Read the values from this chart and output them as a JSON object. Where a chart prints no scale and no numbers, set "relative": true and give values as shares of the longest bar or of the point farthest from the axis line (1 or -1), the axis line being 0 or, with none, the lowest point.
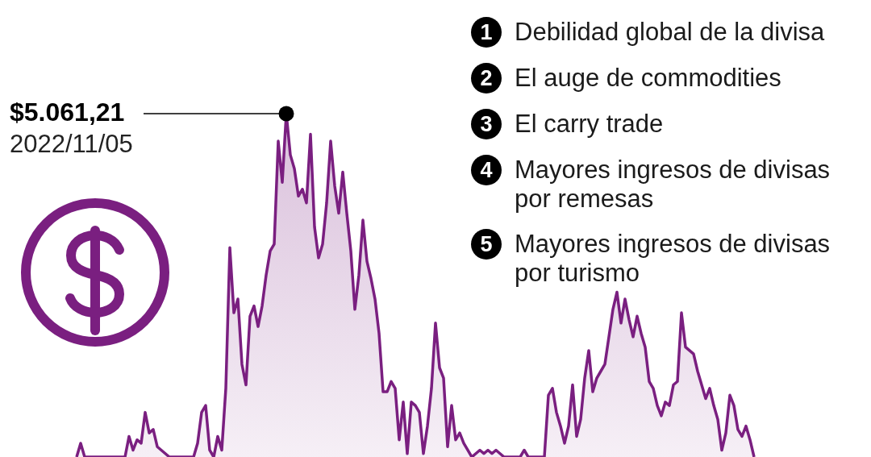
{
  "chart_data": {
    "type": "area",
    "relative": true,
    "color": "#7a1f80",
    "categories": [
      null,
      null,
      null,
      null,
      null,
      null,
      null,
      null,
      null,
      null,
      null,
      null,
      null,
      null,
      null,
      null,
      null,
      null,
      null,
      null,
      null,
      null,
      null,
      null,
      null,
      null,
      null,
      null,
      null,
      null,
      null,
      null,
      null,
      null,
      null,
      null,
      null,
      null,
      null,
      null,
      null,
      null,
      null,
      null,
      null,
      null,
      null,
      null,
      null,
      null,
      null,
      null,
      null,
      null,
      null,
      null,
      null,
      null,
      null,
      null,
      null,
      null,
      null,
      null,
      null,
      null,
      null,
      null,
      null,
      null,
      null,
      null,
      null,
      null,
      null,
      null,
      null,
      null,
      null,
      null,
      null,
      null,
      null,
      null,
      null,
      null,
      null,
      null,
      null,
      null,
      null,
      null,
      null,
      null,
      null,
      null,
      null,
      null,
      null,
      null,
      null,
      null,
      null,
      null,
      null,
      null,
      null,
      null,
      null,
      null,
      null,
      null,
      null,
      null,
      null,
      null,
      null,
      null,
      null,
      null,
      null,
      null,
      null,
      null,
      null,
      null,
      null,
      null,
      null,
      null,
      null,
      null,
      null,
      null,
      null,
      null,
      null,
      null,
      null,
      null,
      null,
      null,
      null,
      null,
      null,
      null,
      null,
      null,
      null,
      null,
      null,
      null,
      null,
      null,
      null,
      null,
      null,
      null,
      null,
      null,
      null,
      null,
      null,
      null,
      null,
      null,
      null,
      null,
      null
    ],
    "values": [
      0,
      0.04,
      0,
      0,
      0,
      0,
      0,
      0,
      0,
      0,
      0,
      0,
      0,
      0.06,
      0.02,
      0.05,
      0.04,
      0.13,
      0.07,
      0.08,
      0.03,
      0.02,
      0.01,
      0,
      0,
      0,
      0,
      0,
      0,
      0,
      0.04,
      0.13,
      0.15,
      0.02,
      0,
      0.06,
      0.02,
      0.2,
      0.61,
      0.42,
      0.46,
      0.27,
      0.21,
      0.41,
      0.44,
      0.38,
      0.44,
      0.53,
      0.6,
      0.62,
      0.92,
      0.8,
      1,
      0.88,
      0.84,
      0.76,
      0.78,
      0.74,
      0.94,
      0.67,
      0.58,
      0.62,
      0.74,
      0.92,
      0.79,
      0.71,
      0.83,
      0.71,
      0.6,
      0.43,
      0.53,
      0.69,
      0.57,
      0.52,
      0.46,
      0.36,
      0.19,
      0.19,
      0.22,
      0.2,
      0.05,
      0.16,
      0.01,
      0.16,
      0.15,
      0.13,
      0.01,
      0.09,
      0.2,
      0.39,
      0.26,
      0.23,
      0.03,
      0.15,
      0.05,
      0.07,
      0.04,
      0.02,
      0,
      0.01,
      0.02,
      0.01,
      0.02,
      0.01,
      0.02,
      0.01,
      0,
      0,
      0,
      0,
      0,
      0.02,
      0,
      0,
      0,
      0,
      0,
      0.18,
      0.2,
      0.13,
      0.09,
      0.04,
      0.09,
      0.21,
      0.06,
      0.11,
      0.23,
      0.31,
      0.19,
      0.23,
      0.25,
      0.27,
      0.35,
      0.43,
      0.48,
      0.39,
      0.46,
      0.4,
      0.35,
      0.41,
      0.36,
      0.32,
      0.22,
      0.2,
      0.15,
      0.12,
      0.16,
      0.15,
      0.21,
      0.22,
      0.42,
      0.32,
      0.31,
      0.3,
      0.25,
      0.21,
      0.17,
      0.2,
      0.15,
      0.11,
      0.02,
      0.07,
      0.18,
      0.15,
      0.08,
      0.06,
      0.09,
      0.05,
      0
    ],
    "annotations": [
      "$5.061,21\n2022/11/05",
      "1 Debilidad global de la divisa",
      "2 El auge de commodities",
      "3 El carry trade",
      "4 Mayores ingresos de divisas por remesas",
      "5 Mayores ingresos de divisas por turismo"
    ]
  }
}
